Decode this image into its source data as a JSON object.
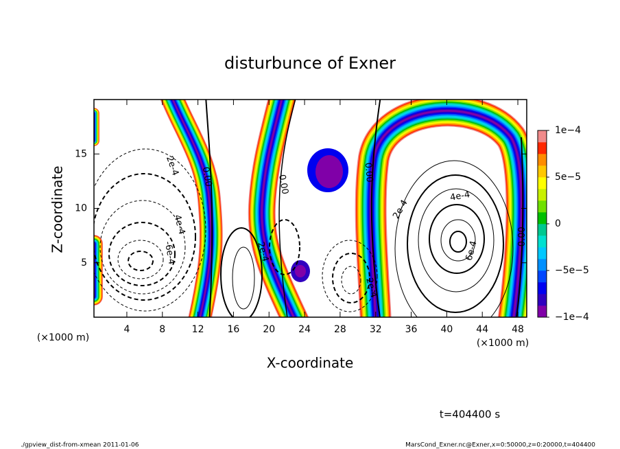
{
  "chart_data": {
    "type": "contour",
    "title": "disturbunce of Exner",
    "xlabel": "X-coordinate",
    "ylabel": "Z-coordinate",
    "x_unit": "(×1000 m)",
    "y_unit": "(×1000 m)",
    "xlim": [
      0.3,
      49
    ],
    "xticks": [
      4,
      8,
      12,
      16,
      20,
      24,
      28,
      32,
      36,
      40,
      44,
      48
    ],
    "ylim": [
      0,
      20
    ],
    "yticks": [
      5,
      10,
      15
    ],
    "colorbar": {
      "lim": [
        -0.0001,
        0.0001
      ],
      "ticks": [
        {
          "value": -0.0001,
          "label": "−1e−4"
        },
        {
          "value": -5e-05,
          "label": "−5e−5"
        },
        0,
        {
          "value": 5e-05,
          "label": "5e−5"
        },
        {
          "value": 0.0001,
          "label": "1e−4"
        }
      ],
      "colors": [
        "#8000a8",
        "#3000c0",
        "#0000f0",
        "#0046ff",
        "#0090ff",
        "#00c8ff",
        "#00e0d0",
        "#00c890",
        "#00c000",
        "#70e000",
        "#c8f000",
        "#ffff00",
        "#ffc800",
        "#ff8c00",
        "#ff2800",
        "#f08a8a"
      ]
    },
    "contour_labels": [
      {
        "text": "2e-4",
        "x": 9.1,
        "y": 13.9
      },
      {
        "text": "0.00",
        "x": 13.0,
        "y": 12.9
      },
      {
        "text": "4e-4",
        "x": 9.9,
        "y": 8.5
      },
      {
        "text": "-6e-4",
        "x": 8.8,
        "y": 5.9
      },
      {
        "text": "0.00",
        "x": 21.6,
        "y": 12.2
      },
      {
        "text": "2e-4",
        "x": 19.3,
        "y": 6.0
      },
      {
        "text": "0.00",
        "x": 31.2,
        "y": 13.3
      },
      {
        "text": "2e-4",
        "x": 34.8,
        "y": 9.9
      },
      {
        "text": "4e-4",
        "x": 41.5,
        "y": 11.1
      },
      {
        "text": "6e-4",
        "x": 42.8,
        "y": 6.1
      },
      {
        "text": "0.00",
        "x": 48.5,
        "y": 7.4
      },
      {
        "text": "2e-4",
        "x": 31.5,
        "y": 2.7
      }
    ],
    "time_label": "t=404400 s",
    "footer_left": "./gpview_dist-from-xmean  2011-01-06",
    "footer_right": "MarsCond_Exner.nc@Exner,x=0:50000,z=0:20000,t=404400"
  }
}
